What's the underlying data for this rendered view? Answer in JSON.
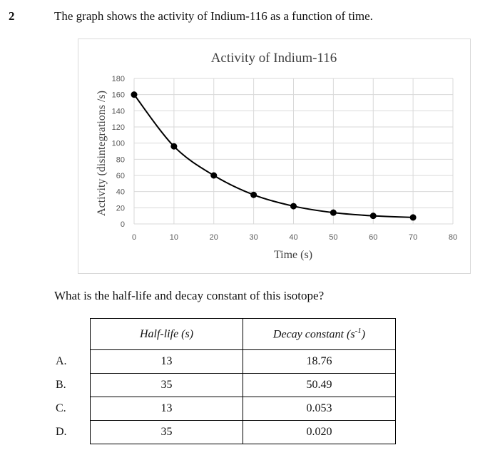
{
  "question": {
    "number": "2",
    "stem": "The graph shows the activity of Indium-116 as a function of time.",
    "prompt": "What is the half-life and decay constant of this isotope?"
  },
  "table": {
    "header_half_life": "Half-life (s)",
    "header_decay_constant_base": "Decay constant (s",
    "header_decay_constant_sup": "-1",
    "header_decay_constant_close": ")",
    "rows": [
      {
        "letter": "A.",
        "half_life": "13",
        "decay_constant": "18.76"
      },
      {
        "letter": "B.",
        "half_life": "35",
        "decay_constant": "50.49"
      },
      {
        "letter": "C.",
        "half_life": "13",
        "decay_constant": "0.053"
      },
      {
        "letter": "D.",
        "half_life": "35",
        "decay_constant": "0.020"
      }
    ]
  },
  "chart_data": {
    "type": "line",
    "title": "Activity of Indium-116",
    "xlabel": "Time (s)",
    "ylabel": "Activity (disintegrations /s)",
    "x": [
      0,
      10,
      20,
      30,
      40,
      50,
      60,
      70
    ],
    "y": [
      160,
      96,
      60,
      36,
      22,
      14,
      10,
      8
    ],
    "xlim": [
      0,
      80
    ],
    "ylim": [
      0,
      180
    ],
    "xticks": [
      0,
      10,
      20,
      30,
      40,
      50,
      60,
      70,
      80
    ],
    "yticks": [
      0,
      20,
      40,
      60,
      80,
      100,
      120,
      140,
      160,
      180
    ],
    "grid": true,
    "marker": "circle",
    "line_color": "#000000",
    "grid_color": "#d9d9d9"
  }
}
